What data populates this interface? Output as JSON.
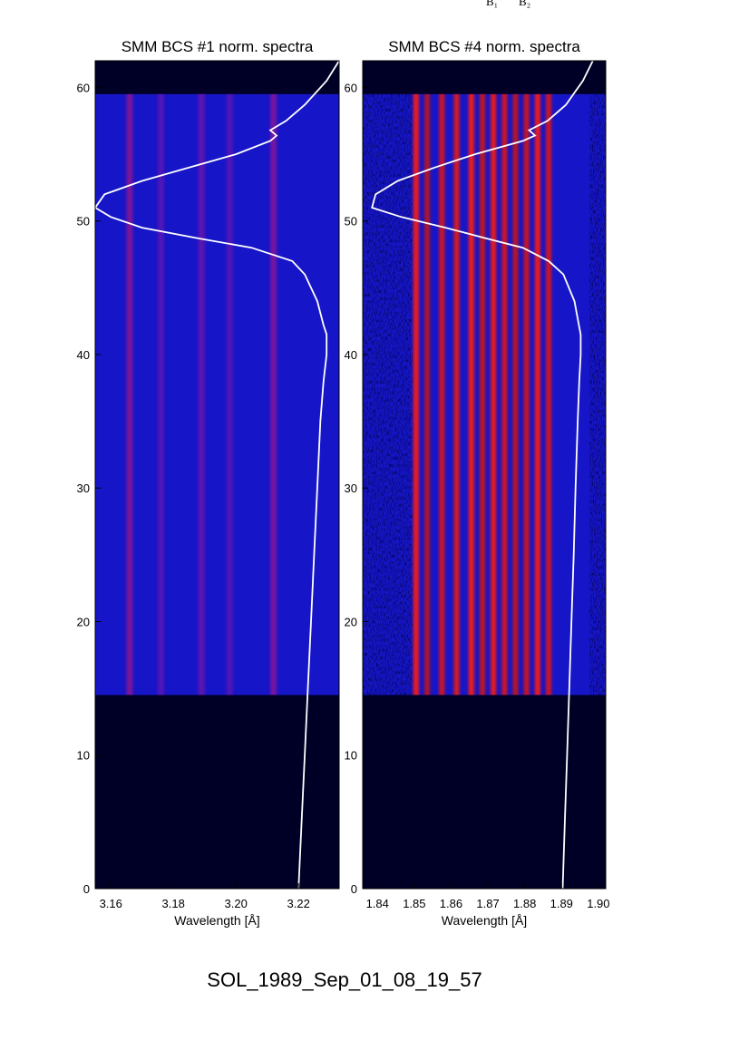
{
  "header": {
    "labels": [
      "B₁",
      "B₂"
    ]
  },
  "footer": {
    "event_id": "SOL_1989_Sep_01_08_19_57"
  },
  "colors": {
    "background_dark": "#000026",
    "continuum_blue": "#1616c8",
    "line_red": "#e11f10",
    "overlay_curve": "#ffffff"
  },
  "chart_data": [
    {
      "type": "heatmap",
      "title": "SMM BCS #1 norm. spectra",
      "xlabel": "Wavelength [Å]",
      "ylabel": "",
      "xlim": [
        3.155,
        3.233
      ],
      "ylim": [
        0,
        62
      ],
      "x_ticks": [
        "3.16",
        "3.18",
        "3.20",
        "3.22"
      ],
      "x_tick_values": [
        3.16,
        3.18,
        3.2,
        3.22
      ],
      "y_ticks": [
        "0",
        "10",
        "20",
        "30",
        "40",
        "50",
        "60"
      ],
      "y_tick_values": [
        0,
        10,
        20,
        30,
        40,
        50,
        60
      ],
      "data_extent_y": [
        14.5,
        59.5
      ],
      "spectral_lines": [
        {
          "x": 3.166,
          "intensity": 0.9
        },
        {
          "x": 3.176,
          "intensity": 0.35
        },
        {
          "x": 3.189,
          "intensity": 0.5
        },
        {
          "x": 3.198,
          "intensity": 0.35
        },
        {
          "x": 3.212,
          "intensity": 0.8
        }
      ],
      "overlay_curve": {
        "x": [
          3.22,
          3.221,
          3.222,
          3.223,
          3.224,
          3.225,
          3.226,
          3.227,
          3.228,
          3.229,
          3.229,
          3.228,
          3.226,
          3.222,
          3.218,
          3.205,
          3.188,
          3.17,
          3.16,
          3.155,
          3.158,
          3.17,
          3.185,
          3.2,
          3.211,
          3.213,
          3.211,
          3.216,
          3.222,
          3.229,
          3.233
        ],
        "y": [
          0,
          5,
          10,
          15,
          20,
          25,
          30,
          35,
          38,
          40,
          41.5,
          42.2,
          44,
          46,
          47,
          48,
          48.7,
          49.5,
          50.3,
          51,
          52,
          53,
          54,
          55,
          56,
          56.4,
          56.8,
          57.5,
          58.7,
          60.5,
          62
        ]
      }
    },
    {
      "type": "heatmap",
      "title": "SMM BCS #4 norm. spectra",
      "xlabel": "Wavelength [Å]",
      "ylabel": "",
      "xlim": [
        1.836,
        1.902
      ],
      "ylim": [
        0,
        62
      ],
      "x_ticks": [
        "1.84",
        "1.85",
        "1.86",
        "1.87",
        "1.88",
        "1.89",
        "1.90"
      ],
      "x_tick_values": [
        1.84,
        1.85,
        1.86,
        1.87,
        1.88,
        1.89,
        1.9
      ],
      "y_ticks": [
        "0",
        "10",
        "20",
        "30",
        "40",
        "50",
        "60"
      ],
      "y_tick_values": [
        0,
        10,
        20,
        30,
        40,
        50,
        60
      ],
      "data_extent_y": [
        14.5,
        59.5
      ],
      "spectral_lines": [
        {
          "x": 1.8505,
          "intensity": 1.0
        },
        {
          "x": 1.8535,
          "intensity": 0.6
        },
        {
          "x": 1.8575,
          "intensity": 0.8
        },
        {
          "x": 1.8615,
          "intensity": 0.85
        },
        {
          "x": 1.8655,
          "intensity": 1.0
        },
        {
          "x": 1.8685,
          "intensity": 0.7
        },
        {
          "x": 1.8715,
          "intensity": 0.95
        },
        {
          "x": 1.8745,
          "intensity": 0.8
        },
        {
          "x": 1.8775,
          "intensity": 0.65
        },
        {
          "x": 1.8805,
          "intensity": 0.75
        },
        {
          "x": 1.8835,
          "intensity": 1.0
        },
        {
          "x": 1.8865,
          "intensity": 0.8
        }
      ],
      "overlay_curve": {
        "x": [
          1.8903,
          1.8909,
          1.8915,
          1.8921,
          1.8927,
          1.8933,
          1.8938,
          1.8944,
          1.8948,
          1.8952,
          1.8952,
          1.8947,
          1.8935,
          1.8905,
          1.8865,
          1.8795,
          1.8695,
          1.8585,
          1.8465,
          1.8385,
          1.8395,
          1.8455,
          1.8555,
          1.8665,
          1.8795,
          1.8828,
          1.8812,
          1.8862,
          1.8912,
          1.8958,
          1.8985
        ],
        "y": [
          0,
          5,
          10,
          15,
          20,
          25,
          30,
          35,
          38,
          40,
          41.5,
          42.2,
          44,
          46,
          47,
          48,
          48.7,
          49.5,
          50.3,
          51,
          52,
          53,
          54,
          55,
          56,
          56.4,
          56.8,
          57.5,
          58.7,
          60.5,
          62
        ]
      }
    }
  ]
}
